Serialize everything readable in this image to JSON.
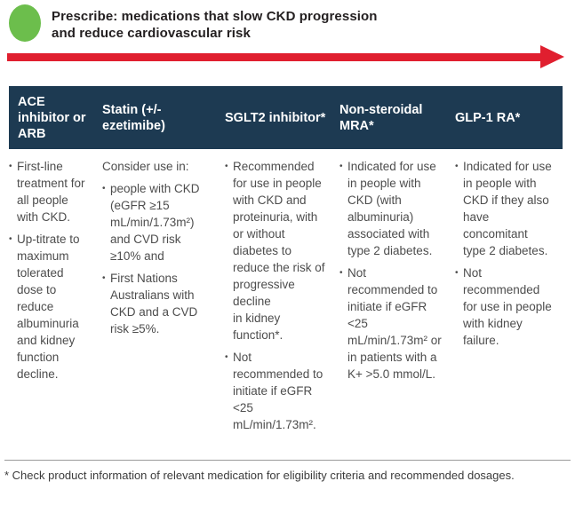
{
  "ui": {
    "bullet_char": "•"
  },
  "colors": {
    "header_bg": "#1d3a52",
    "arrow_red": "#e01f2f",
    "circle_green": "#6cbe4c",
    "title_text": "#231f20",
    "body_text": "#4d4d4d",
    "header_text": "#ffffff"
  },
  "callout": {
    "title": "Prescribe: medications that slow CKD progression\nand reduce cardiovascular risk"
  },
  "table": {
    "columns": [
      {
        "header": "ACE inhibitor or ARB",
        "bullets": [
          "First-line treatment for all people with CKD.",
          "Up-titrate to maximum tolerated dose to reduce albuminuria and kidney function decline."
        ]
      },
      {
        "header": "Statin (+/- ezetimibe)",
        "intro": "Consider use in:",
        "bullets": [
          "people with CKD (eGFR ≥15 mL/min/1.73m²) and CVD risk ≥10% and",
          "First Nations Australians with CKD and a CVD risk ≥5%."
        ]
      },
      {
        "header": "SGLT2 inhibitor*",
        "bullets": [
          "Recommended for use in people with CKD and proteinuria, with or without diabetes to reduce the risk of progressive decline\nin kidney function*.",
          "Not recommended to initiate if eGFR <25 mL/min/1.73m²."
        ]
      },
      {
        "header": "Non-steroidal MRA*",
        "bullets": [
          "Indicated for use in people with CKD (with albuminuria) associated with type 2 diabetes.",
          "Not recommended to initiate if eGFR <25 mL/min/1.73m² or in patients with a K+ >5.0 mmol/L."
        ]
      },
      {
        "header": "GLP-1 RA*",
        "bullets": [
          "Indicated for use in people with CKD if they also have concomitant type 2 diabetes.",
          "Not recommended for use in people with kidney failure."
        ]
      }
    ]
  },
  "footnote": "* Check product information of relevant medication for eligibility criteria and recommended dosages."
}
